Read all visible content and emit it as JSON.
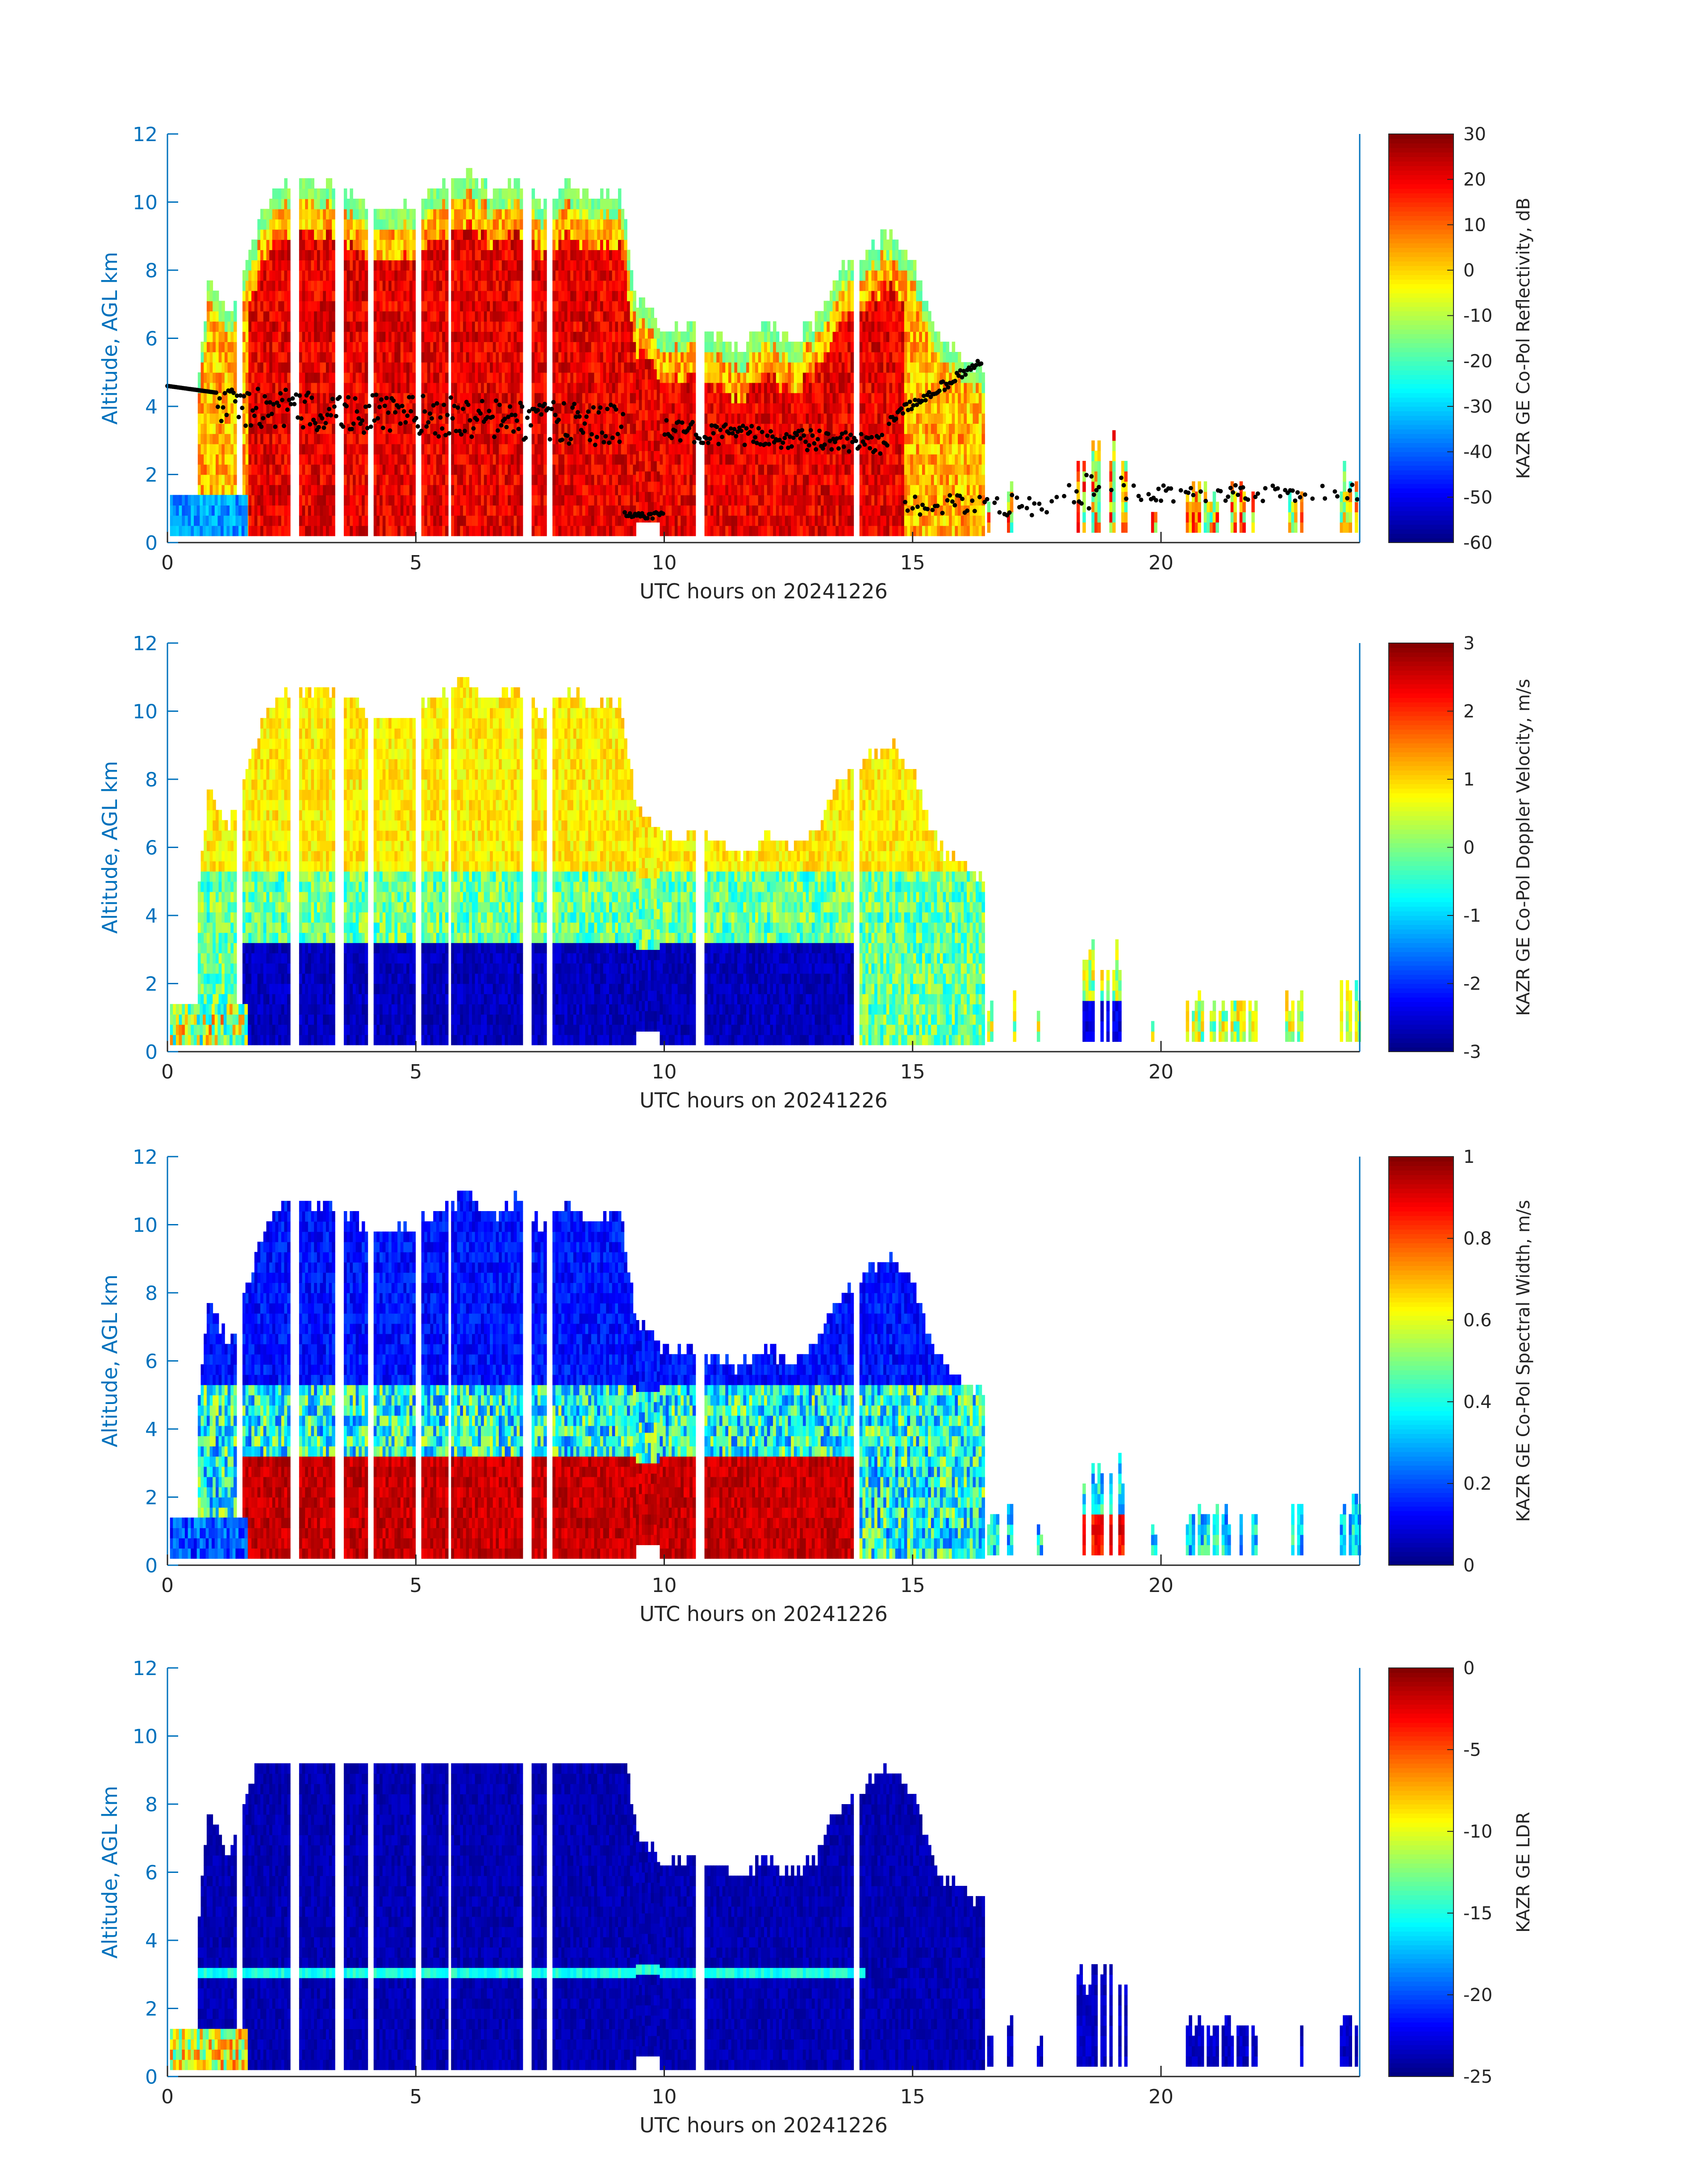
{
  "figure": {
    "background": "#ffffff",
    "axis_color": "#0072BD",
    "text_color": "#262626"
  },
  "chart_data": [
    {
      "type": "heatmap",
      "title": "",
      "xlabel": "UTC hours on 20241226",
      "ylabel": "Altitude, AGL km",
      "xlim": [
        0,
        24
      ],
      "ylim": [
        0,
        12
      ],
      "xticks": [
        0,
        5,
        10,
        15,
        20
      ],
      "yticks": [
        0,
        2,
        4,
        6,
        8,
        10,
        12
      ],
      "colorbar": {
        "label": "KAZR GE Co-Pol Reflectivity, dB",
        "min": -60,
        "max": 30,
        "ticks": [
          -60,
          -50,
          -40,
          -30,
          -20,
          -10,
          0,
          10,
          20,
          30
        ],
        "colormap": "jet"
      },
      "field": "reflectivity",
      "overlay": "black scatter of cloud-base points"
    },
    {
      "type": "heatmap",
      "title": "",
      "xlabel": "UTC hours on 20241226",
      "ylabel": "Altitude, AGL km",
      "xlim": [
        0,
        24
      ],
      "ylim": [
        0,
        12
      ],
      "xticks": [
        0,
        5,
        10,
        15,
        20
      ],
      "yticks": [
        0,
        2,
        4,
        6,
        8,
        10,
        12
      ],
      "colorbar": {
        "label": "KAZR GE Co-Pol Doppler Velocity, m/s",
        "min": -3,
        "max": 3,
        "ticks": [
          -3,
          -2,
          -1,
          0,
          1,
          2,
          3
        ],
        "colormap": "jet"
      },
      "field": "velocity"
    },
    {
      "type": "heatmap",
      "title": "",
      "xlabel": "UTC hours on 20241226",
      "ylabel": "Altitude, AGL km",
      "xlim": [
        0,
        24
      ],
      "ylim": [
        0,
        12
      ],
      "xticks": [
        0,
        5,
        10,
        15,
        20
      ],
      "yticks": [
        0,
        2,
        4,
        6,
        8,
        10,
        12
      ],
      "colorbar": {
        "label": "KAZR GE Co-Pol Spectral Width, m/s",
        "min": 0,
        "max": 1,
        "ticks": [
          0,
          0.2,
          0.4,
          0.6,
          0.8,
          1
        ],
        "colormap": "jet"
      },
      "field": "width"
    },
    {
      "type": "heatmap",
      "title": "",
      "xlabel": "UTC hours on 20241226",
      "ylabel": "Altitude, AGL km",
      "xlim": [
        0,
        24
      ],
      "ylim": [
        0,
        12
      ],
      "xticks": [
        0,
        5,
        10,
        15,
        20
      ],
      "yticks": [
        0,
        2,
        4,
        6,
        8,
        10,
        12
      ],
      "colorbar": {
        "label": "KAZR GE LDR",
        "min": -25,
        "max": 0,
        "ticks": [
          -25,
          -20,
          -15,
          -10,
          -5,
          0
        ],
        "colormap": "jet"
      },
      "field": "ldr"
    }
  ],
  "cloud_tops_km": [
    {
      "x": 0.6,
      "top": 4.6
    },
    {
      "x": 0.8,
      "top": 8.0
    },
    {
      "x": 1.2,
      "top": 6.5
    },
    {
      "x": 1.6,
      "top": 8.5
    },
    {
      "x": 2.0,
      "top": 10.2
    },
    {
      "x": 2.5,
      "top": 10.8
    },
    {
      "x": 3.0,
      "top": 10.6
    },
    {
      "x": 3.6,
      "top": 10.4
    },
    {
      "x": 4.2,
      "top": 9.8
    },
    {
      "x": 4.8,
      "top": 9.9
    },
    {
      "x": 5.5,
      "top": 10.5
    },
    {
      "x": 6.0,
      "top": 11.0
    },
    {
      "x": 6.5,
      "top": 10.3
    },
    {
      "x": 7.0,
      "top": 10.8
    },
    {
      "x": 7.5,
      "top": 10.0
    },
    {
      "x": 8.0,
      "top": 10.6
    },
    {
      "x": 8.5,
      "top": 10.3
    },
    {
      "x": 9.1,
      "top": 10.4
    },
    {
      "x": 9.4,
      "top": 7.2
    },
    {
      "x": 10.0,
      "top": 6.3
    },
    {
      "x": 10.5,
      "top": 6.4
    },
    {
      "x": 11.0,
      "top": 6.2
    },
    {
      "x": 11.5,
      "top": 5.8
    },
    {
      "x": 12.0,
      "top": 6.5
    },
    {
      "x": 12.5,
      "top": 6.0
    },
    {
      "x": 13.0,
      "top": 6.5
    },
    {
      "x": 13.5,
      "top": 8.0
    },
    {
      "x": 14.0,
      "top": 8.5
    },
    {
      "x": 14.5,
      "top": 9.2
    },
    {
      "x": 15.0,
      "top": 8.2
    },
    {
      "x": 15.5,
      "top": 6.0
    },
    {
      "x": 16.0,
      "top": 5.5
    },
    {
      "x": 16.4,
      "top": 5.2
    }
  ],
  "late_cells_km": [
    {
      "x0": 16.5,
      "x1": 16.7,
      "top": 1.6
    },
    {
      "x0": 16.9,
      "x1": 17.1,
      "top": 2.0
    },
    {
      "x0": 17.5,
      "x1": 17.6,
      "top": 1.2
    },
    {
      "x0": 18.3,
      "x1": 19.3,
      "top": 3.5
    },
    {
      "x0": 19.8,
      "x1": 19.9,
      "top": 1.0
    },
    {
      "x0": 20.5,
      "x1": 21.9,
      "top": 1.7
    },
    {
      "x0": 22.5,
      "x1": 22.8,
      "top": 1.8
    },
    {
      "x0": 23.6,
      "x1": 24.0,
      "top": 2.2
    }
  ]
}
